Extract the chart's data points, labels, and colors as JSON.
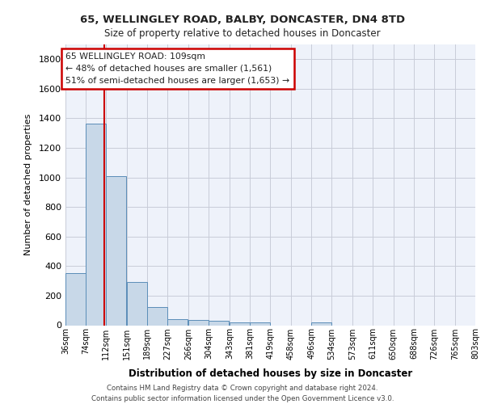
{
  "title_line1": "65, WELLINGLEY ROAD, BALBY, DONCASTER, DN4 8TD",
  "title_line2": "Size of property relative to detached houses in Doncaster",
  "xlabel": "Distribution of detached houses by size in Doncaster",
  "ylabel": "Number of detached properties",
  "bar_color": "#c8d8e8",
  "bar_edge_color": "#5b8db8",
  "marker_line_color": "#cc0000",
  "annotation_box_color": "#cc0000",
  "background_color": "#ffffff",
  "plot_bg_color": "#eef2fa",
  "grid_color": "#c8ccd8",
  "footer_text": "Contains HM Land Registry data © Crown copyright and database right 2024.\nContains public sector information licensed under the Open Government Licence v3.0.",
  "annotation_text": "65 WELLINGLEY ROAD: 109sqm\n← 48% of detached houses are smaller (1,561)\n51% of semi-detached houses are larger (1,653) →",
  "property_size": 109,
  "bin_edges": [
    36,
    74,
    112,
    151,
    189,
    227,
    266,
    304,
    343,
    381,
    419,
    458,
    496,
    534,
    573,
    611,
    650,
    688,
    726,
    765,
    803
  ],
  "bin_labels": [
    "36sqm",
    "74sqm",
    "112sqm",
    "151sqm",
    "189sqm",
    "227sqm",
    "266sqm",
    "304sqm",
    "343sqm",
    "381sqm",
    "419sqm",
    "458sqm",
    "496sqm",
    "534sqm",
    "573sqm",
    "611sqm",
    "650sqm",
    "688sqm",
    "726sqm",
    "765sqm",
    "803sqm"
  ],
  "bar_heights": [
    355,
    1365,
    1010,
    290,
    125,
    42,
    35,
    28,
    20,
    18,
    0,
    0,
    18,
    0,
    0,
    0,
    0,
    0,
    0,
    0
  ],
  "ylim": [
    0,
    1900
  ],
  "yticks": [
    0,
    200,
    400,
    600,
    800,
    1000,
    1200,
    1400,
    1600,
    1800
  ]
}
